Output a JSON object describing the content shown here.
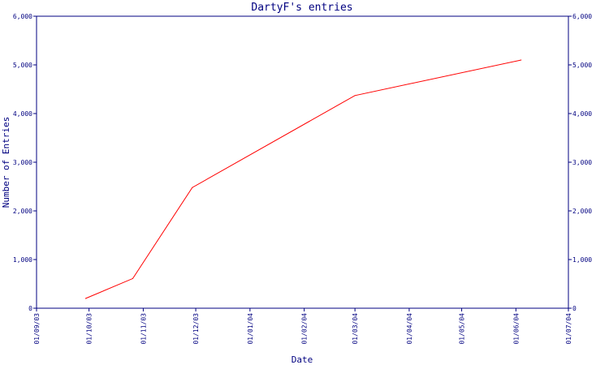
{
  "chart_data": {
    "type": "line",
    "title": "DartyF's entries",
    "xlabel": "Date",
    "ylabel": "Number of Entries",
    "x_ticks": [
      "01/09/03",
      "01/10/03",
      "01/11/03",
      "01/12/03",
      "01/01/04",
      "01/02/04",
      "01/03/04",
      "01/04/04",
      "01/05/04",
      "01/06/04",
      "01/07/04"
    ],
    "y_ticks": [
      "0",
      "1,000",
      "2,000",
      "3,000",
      "4,000",
      "5,000",
      "6,000"
    ],
    "ylim": [
      0,
      6000
    ],
    "grid": false,
    "right_axis": true,
    "colors": {
      "axis": "#000080",
      "line": "#ff0000",
      "text": "#000080"
    },
    "series": [
      {
        "points": [
          {
            "x": "2003-09-29",
            "y": 200
          },
          {
            "x": "2003-10-26",
            "y": 610
          },
          {
            "x": "2003-11-29",
            "y": 2480
          },
          {
            "x": "2004-03-01",
            "y": 4370
          },
          {
            "x": "2004-06-04",
            "y": 5100
          }
        ]
      }
    ]
  }
}
